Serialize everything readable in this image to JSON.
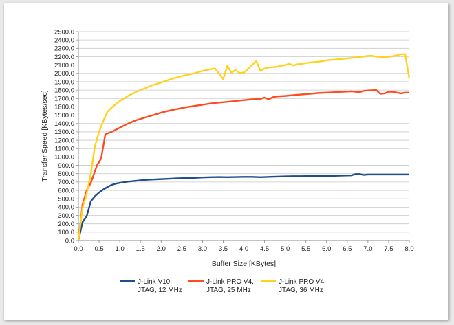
{
  "chart_data": {
    "type": "line",
    "title": "",
    "xlabel": "Buffer Size [KBytes]",
    "ylabel": "Transfer Speed [KBytes/sec]",
    "xlim": [
      0,
      8
    ],
    "ylim": [
      0,
      2500
    ],
    "x_ticks": [
      "0.0",
      "0.5",
      "1.0",
      "1.5",
      "2.0",
      "2.5",
      "3.0",
      "3.5",
      "4.0",
      "4.5",
      "5.0",
      "5.5",
      "6.0",
      "6.5",
      "7.0",
      "7.5",
      "8.0"
    ],
    "y_ticks": [
      "0.0",
      "100.0",
      "200.0",
      "300.0",
      "400.0",
      "500.0",
      "600.0",
      "700.0",
      "800.0",
      "900.0",
      "1000.0",
      "1100.0",
      "1200.0",
      "1300.0",
      "1400.0",
      "1500.0",
      "1600.0",
      "1700.0",
      "1800.0",
      "1900.0",
      "2000.0",
      "2100.0",
      "2200.0",
      "2300.0",
      "2400.0",
      "2500.0"
    ],
    "grid": true,
    "legend_position": "bottom",
    "series": [
      {
        "name": "J-Link V10, JTAG, 12 MHz",
        "legend_lines": [
          "J-Link V10,",
          "JTAG, 12 MHz"
        ],
        "color": "#1f4e8c",
        "points": [
          [
            0,
            0
          ],
          [
            0.1,
            220
          ],
          [
            0.2,
            290
          ],
          [
            0.3,
            470
          ],
          [
            0.4,
            530
          ],
          [
            0.5,
            575
          ],
          [
            0.6,
            610
          ],
          [
            0.7,
            640
          ],
          [
            0.8,
            665
          ],
          [
            0.9,
            680
          ],
          [
            1.0,
            690
          ],
          [
            1.2,
            705
          ],
          [
            1.4,
            715
          ],
          [
            1.6,
            725
          ],
          [
            1.8,
            730
          ],
          [
            2.0,
            735
          ],
          [
            2.2,
            740
          ],
          [
            2.4,
            745
          ],
          [
            2.6,
            748
          ],
          [
            2.8,
            750
          ],
          [
            3.0,
            755
          ],
          [
            3.2,
            758
          ],
          [
            3.4,
            760
          ],
          [
            3.6,
            758
          ],
          [
            3.8,
            760
          ],
          [
            4.0,
            762
          ],
          [
            4.2,
            762
          ],
          [
            4.4,
            758
          ],
          [
            4.6,
            762
          ],
          [
            4.8,
            765
          ],
          [
            5.0,
            768
          ],
          [
            5.2,
            770
          ],
          [
            5.4,
            770
          ],
          [
            5.6,
            772
          ],
          [
            5.8,
            772
          ],
          [
            6.0,
            775
          ],
          [
            6.2,
            775
          ],
          [
            6.4,
            778
          ],
          [
            6.6,
            780
          ],
          [
            6.7,
            795
          ],
          [
            6.8,
            795
          ],
          [
            6.9,
            785
          ],
          [
            7.0,
            790
          ],
          [
            7.2,
            790
          ],
          [
            7.4,
            790
          ],
          [
            7.6,
            790
          ],
          [
            7.8,
            790
          ],
          [
            8.0,
            790
          ]
        ]
      },
      {
        "name": "J-Link PRO V4, JTAG, 25 MHz",
        "legend_lines": [
          "J-Link PRO V4,",
          "JTAG, 25 MHz"
        ],
        "color": "#ff4b1f",
        "points": [
          [
            0,
            0
          ],
          [
            0.1,
            430
          ],
          [
            0.2,
            600
          ],
          [
            0.3,
            690
          ],
          [
            0.35,
            760
          ],
          [
            0.45,
            900
          ],
          [
            0.55,
            980
          ],
          [
            0.65,
            1270
          ],
          [
            0.8,
            1300
          ],
          [
            1.0,
            1350
          ],
          [
            1.2,
            1400
          ],
          [
            1.4,
            1440
          ],
          [
            1.6,
            1470
          ],
          [
            1.8,
            1500
          ],
          [
            2.0,
            1530
          ],
          [
            2.2,
            1555
          ],
          [
            2.4,
            1575
          ],
          [
            2.6,
            1595
          ],
          [
            2.8,
            1610
          ],
          [
            3.0,
            1625
          ],
          [
            3.2,
            1640
          ],
          [
            3.4,
            1650
          ],
          [
            3.6,
            1660
          ],
          [
            3.8,
            1670
          ],
          [
            4.0,
            1680
          ],
          [
            4.2,
            1690
          ],
          [
            4.4,
            1695
          ],
          [
            4.5,
            1710
          ],
          [
            4.6,
            1690
          ],
          [
            4.7,
            1715
          ],
          [
            4.8,
            1725
          ],
          [
            5.0,
            1730
          ],
          [
            5.2,
            1740
          ],
          [
            5.4,
            1748
          ],
          [
            5.6,
            1755
          ],
          [
            5.8,
            1765
          ],
          [
            6.0,
            1770
          ],
          [
            6.2,
            1775
          ],
          [
            6.4,
            1780
          ],
          [
            6.6,
            1785
          ],
          [
            6.8,
            1775
          ],
          [
            6.9,
            1790
          ],
          [
            7.0,
            1795
          ],
          [
            7.2,
            1800
          ],
          [
            7.3,
            1755
          ],
          [
            7.4,
            1760
          ],
          [
            7.5,
            1780
          ],
          [
            7.6,
            1780
          ],
          [
            7.7,
            1770
          ],
          [
            7.8,
            1760
          ],
          [
            7.9,
            1770
          ],
          [
            8.0,
            1770
          ]
        ]
      },
      {
        "name": "J-Link PRO V4, JTAG, 36 MHz",
        "legend_lines": [
          "J-Link PRO V4,",
          "JTAG, 36 MHz"
        ],
        "color": "#ffd21f",
        "points": [
          [
            0,
            0
          ],
          [
            0.1,
            390
          ],
          [
            0.2,
            560
          ],
          [
            0.3,
            800
          ],
          [
            0.4,
            1130
          ],
          [
            0.5,
            1300
          ],
          [
            0.6,
            1430
          ],
          [
            0.7,
            1540
          ],
          [
            0.8,
            1590
          ],
          [
            1.0,
            1670
          ],
          [
            1.2,
            1730
          ],
          [
            1.4,
            1780
          ],
          [
            1.6,
            1820
          ],
          [
            1.8,
            1860
          ],
          [
            2.0,
            1890
          ],
          [
            2.2,
            1925
          ],
          [
            2.4,
            1955
          ],
          [
            2.6,
            1980
          ],
          [
            2.8,
            2000
          ],
          [
            3.0,
            2030
          ],
          [
            3.2,
            2050
          ],
          [
            3.3,
            2060
          ],
          [
            3.4,
            2000
          ],
          [
            3.5,
            1930
          ],
          [
            3.6,
            2090
          ],
          [
            3.7,
            2010
          ],
          [
            3.8,
            2040
          ],
          [
            3.9,
            2005
          ],
          [
            4.0,
            2010
          ],
          [
            4.2,
            2100
          ],
          [
            4.3,
            2150
          ],
          [
            4.4,
            2030
          ],
          [
            4.5,
            2060
          ],
          [
            4.6,
            2070
          ],
          [
            4.8,
            2080
          ],
          [
            5.0,
            2100
          ],
          [
            5.1,
            2115
          ],
          [
            5.2,
            2095
          ],
          [
            5.3,
            2110
          ],
          [
            5.4,
            2115
          ],
          [
            5.6,
            2130
          ],
          [
            5.8,
            2140
          ],
          [
            6.0,
            2155
          ],
          [
            6.2,
            2165
          ],
          [
            6.4,
            2175
          ],
          [
            6.6,
            2185
          ],
          [
            6.8,
            2195
          ],
          [
            7.0,
            2210
          ],
          [
            7.1,
            2210
          ],
          [
            7.2,
            2200
          ],
          [
            7.4,
            2195
          ],
          [
            7.6,
            2205
          ],
          [
            7.8,
            2230
          ],
          [
            7.9,
            2230
          ],
          [
            8.0,
            1940
          ]
        ]
      }
    ]
  }
}
